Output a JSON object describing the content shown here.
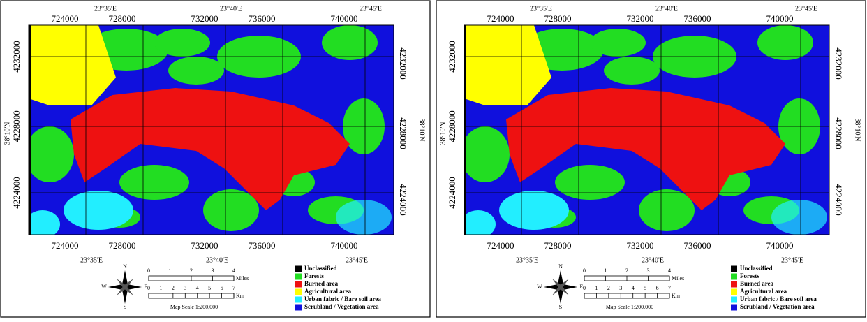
{
  "panels": [
    {
      "top_lon_labels": [
        "23°35'E",
        "23°40'E",
        "23°45'E"
      ],
      "top_easting_labels": [
        "724000",
        "728000",
        "732000",
        "736000",
        "740000"
      ],
      "left_northing_labels": [
        "4232000",
        "4228000",
        "4224000"
      ],
      "right_northing_labels": [
        "4232000",
        "4228000",
        "4224000"
      ],
      "lat_label_left": "38°10'N",
      "lat_label_right": "38°10'N",
      "bottom_easting_labels": [
        "724000",
        "728000",
        "732000",
        "736000",
        "740000"
      ],
      "bottom_lon_labels": [
        "23°35'E",
        "23°40'E",
        "23°45'E"
      ],
      "compass": {
        "n": "N",
        "e": "E",
        "s": "S",
        "w": "W"
      },
      "scale": {
        "miles_ticks": [
          "0",
          "1",
          "2",
          "3",
          "4"
        ],
        "miles_unit": "Miles",
        "km_ticks": [
          "0",
          "1",
          "2",
          "3",
          "4",
          "5",
          "6",
          "7"
        ],
        "km_unit": "Km",
        "caption": "Map Scale 1:200,000"
      },
      "legend": [
        {
          "label": "Unclassified",
          "color": "#000000"
        },
        {
          "label": "Forests",
          "color": "#22dd22"
        },
        {
          "label": "Burned area",
          "color": "#ee1111"
        },
        {
          "label": "Agricultural area",
          "color": "#ffff00"
        },
        {
          "label": "Urban fabric / Bare soil area",
          "color": "#22eeff"
        },
        {
          "label": "Scrubland / Vegetation area",
          "color": "#1010dd"
        }
      ]
    },
    {
      "top_lon_labels": [
        "23°35'E",
        "23°40'E",
        "23°45'E"
      ],
      "top_easting_labels": [
        "724000",
        "728000",
        "732000",
        "736000",
        "740000"
      ],
      "left_northing_labels": [
        "4232000",
        "4228000",
        "4224000"
      ],
      "right_northing_labels": [
        "4232000",
        "4228000",
        "4224000"
      ],
      "lat_label_left": "38°10'N",
      "lat_label_right": "38°10'N",
      "bottom_easting_labels": [
        "724000",
        "728000",
        "732000",
        "736000",
        "740000"
      ],
      "bottom_lon_labels": [
        "23°35'E",
        "23°40'E",
        "23°45'E"
      ],
      "compass": {
        "n": "N",
        "e": "E",
        "s": "S",
        "w": "W"
      },
      "scale": {
        "miles_ticks": [
          "0",
          "1",
          "2",
          "3",
          "4"
        ],
        "miles_unit": "Miles",
        "km_ticks": [
          "0",
          "1",
          "2",
          "3",
          "4",
          "5",
          "6",
          "7"
        ],
        "km_unit": "Km",
        "caption": "Map Scale 1:200,000"
      },
      "legend": [
        {
          "label": "Unclassified",
          "color": "#000000"
        },
        {
          "label": "Forests",
          "color": "#22dd22"
        },
        {
          "label": "Burned area",
          "color": "#ee1111"
        },
        {
          "label": "Agricultural area",
          "color": "#ffff00"
        },
        {
          "label": "Urban fabric / Bare soil area",
          "color": "#22eeff"
        },
        {
          "label": "Scrubland / Vegetation area",
          "color": "#1010dd"
        }
      ]
    }
  ]
}
